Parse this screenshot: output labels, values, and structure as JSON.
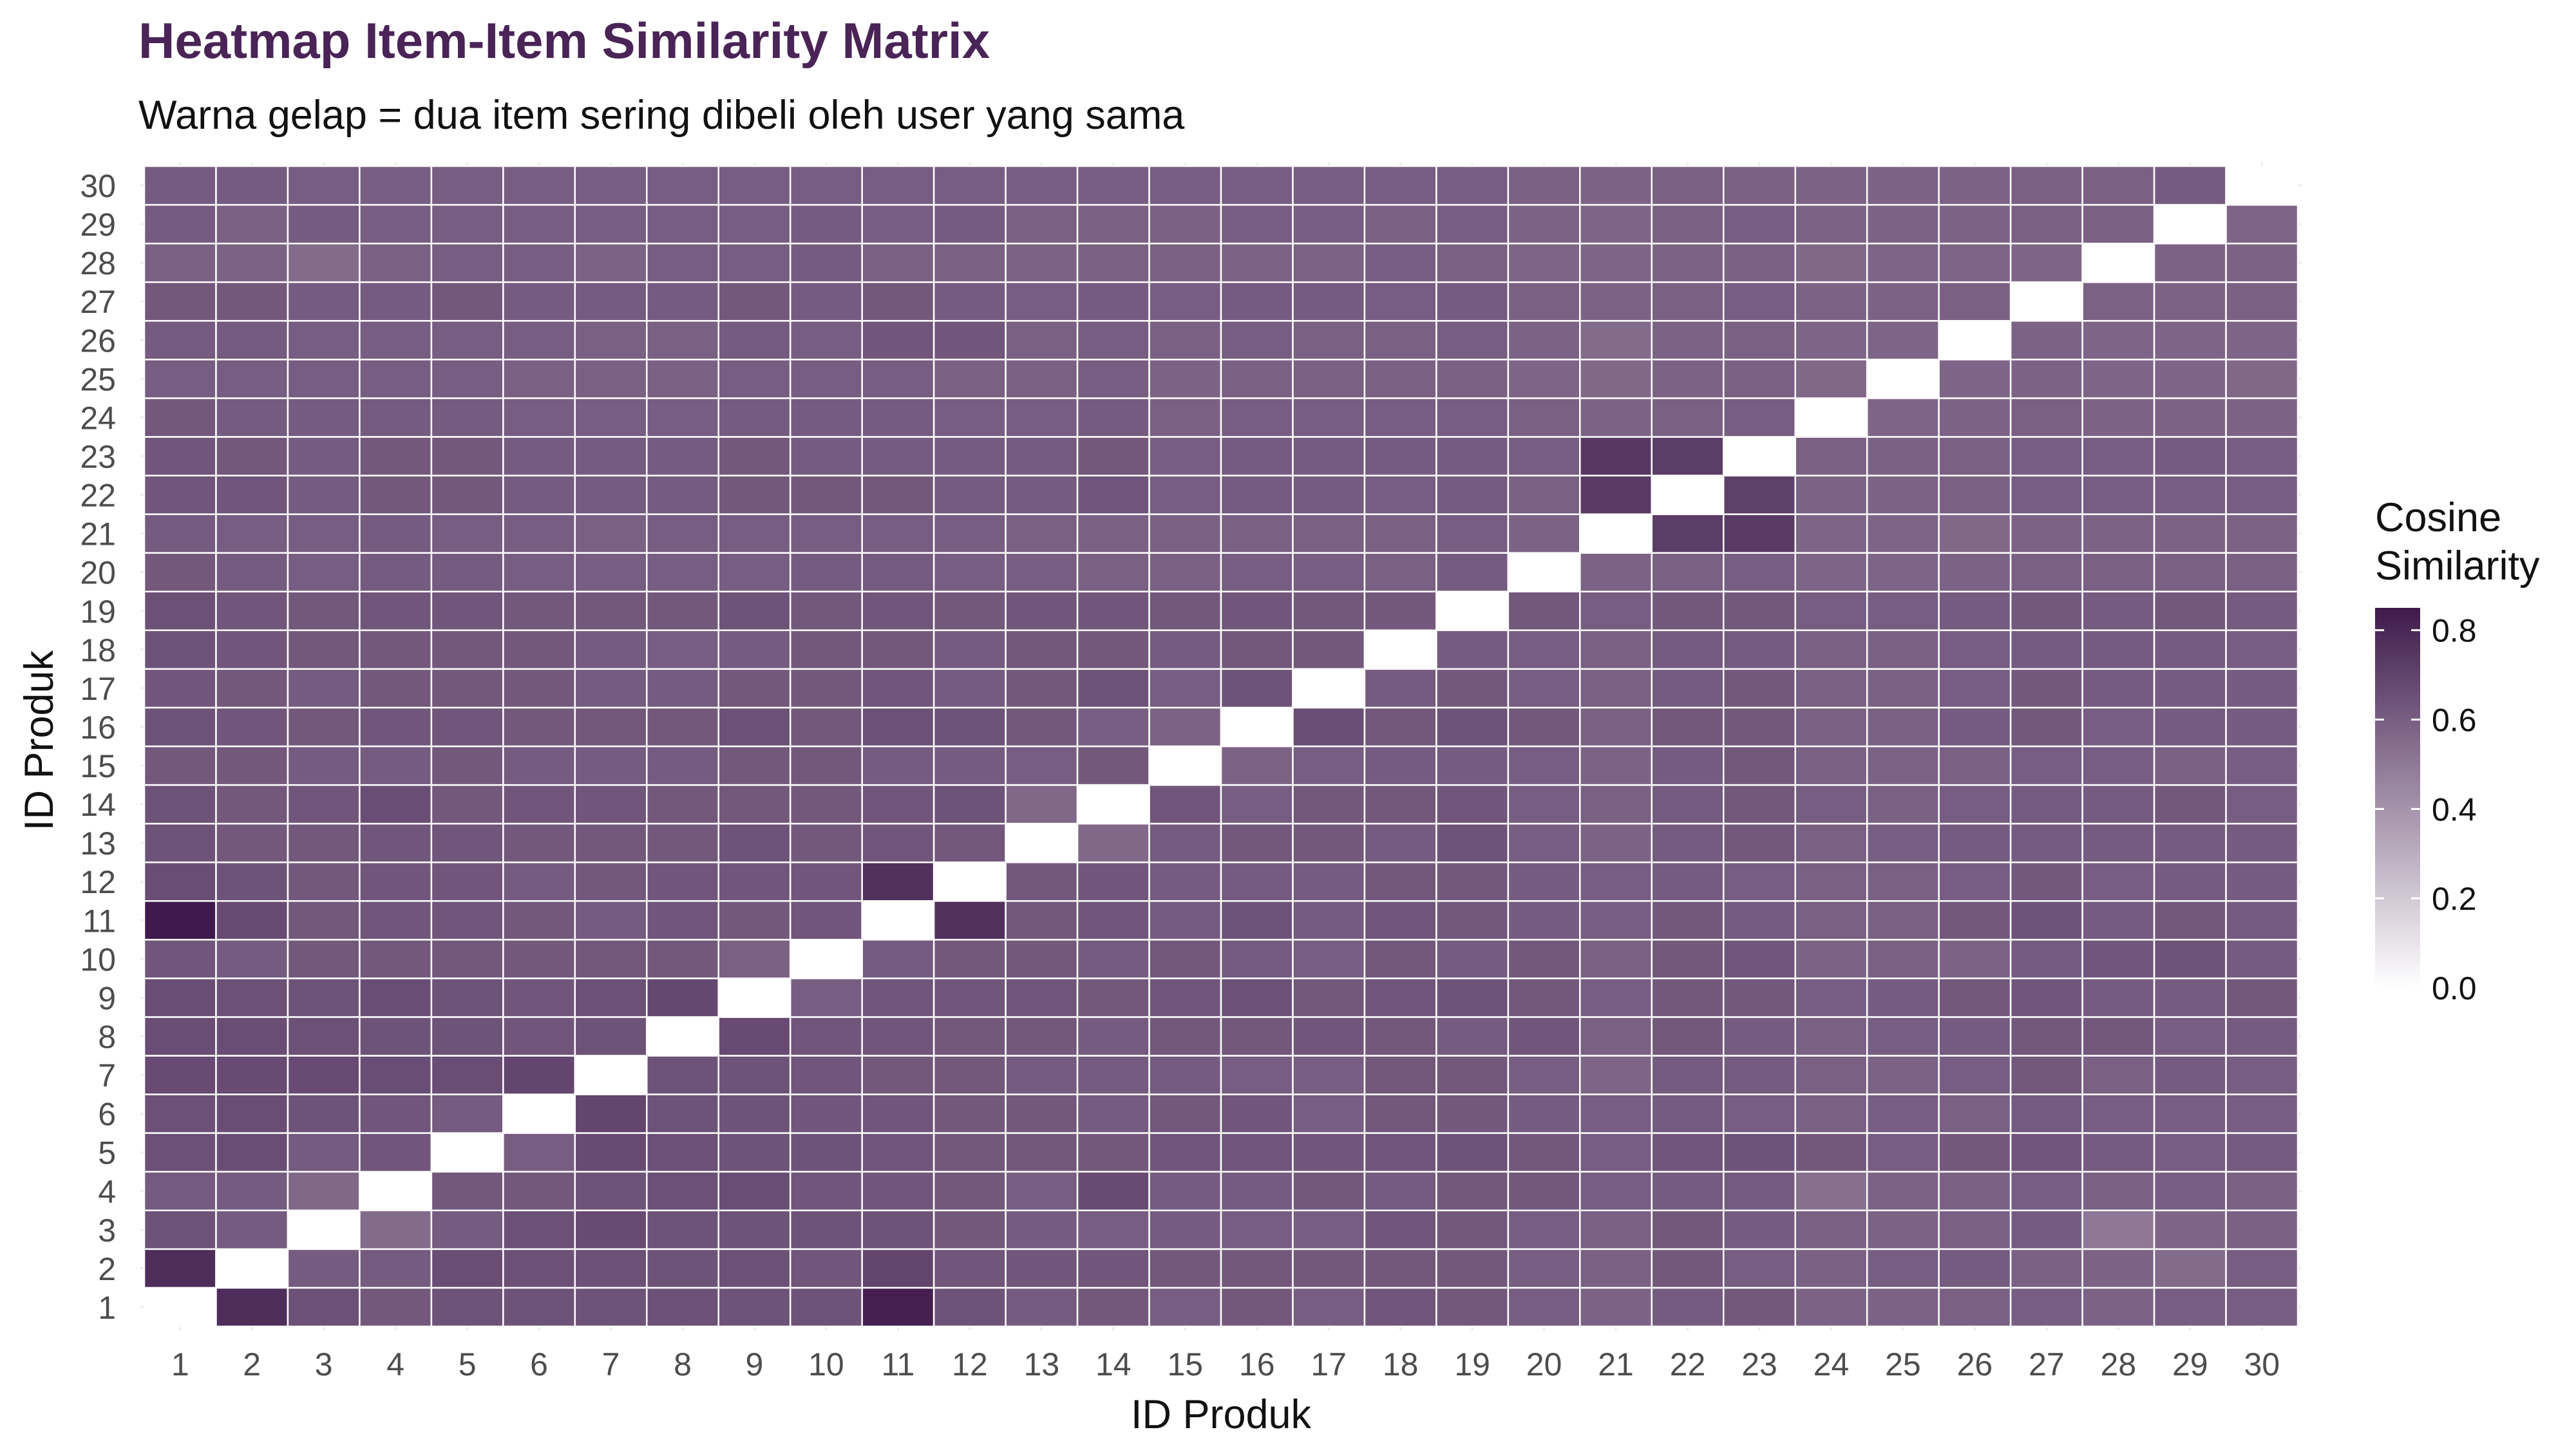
{
  "chart_data": {
    "type": "heatmap",
    "title": "Heatmap Item-Item Similarity Matrix",
    "subtitle": "Warna gelap = dua item sering dibeli oleh user yang sama",
    "xlabel": "ID Produk",
    "ylabel": "ID Produk",
    "x_categories": [
      "1",
      "2",
      "3",
      "4",
      "5",
      "6",
      "7",
      "8",
      "9",
      "10",
      "11",
      "12",
      "13",
      "14",
      "15",
      "16",
      "17",
      "18",
      "19",
      "20",
      "21",
      "22",
      "23",
      "24",
      "25",
      "26",
      "27",
      "28",
      "29",
      "30"
    ],
    "y_categories": [
      "1",
      "2",
      "3",
      "4",
      "5",
      "6",
      "7",
      "8",
      "9",
      "10",
      "11",
      "12",
      "13",
      "14",
      "15",
      "16",
      "17",
      "18",
      "19",
      "20",
      "21",
      "22",
      "23",
      "24",
      "25",
      "26",
      "27",
      "28",
      "29",
      "30"
    ],
    "legend": {
      "title_lines": [
        "Cosine",
        "Similarity"
      ],
      "ticks": [
        "0.0",
        "0.2",
        "0.4",
        "0.6",
        "0.8"
      ],
      "tick_values": [
        0.0,
        0.2,
        0.4,
        0.6,
        0.8
      ],
      "range": [
        0.0,
        0.85
      ],
      "position": "right"
    },
    "color_low": "#ffffff",
    "color_high": "#3f1a4c",
    "diagonal_value": 0.0,
    "matrix": [
      [
        0.0,
        0.78,
        0.65,
        0.62,
        0.64,
        0.64,
        0.64,
        0.65,
        0.64,
        0.64,
        0.83,
        0.64,
        0.61,
        0.62,
        0.6,
        0.62,
        0.6,
        0.63,
        0.62,
        0.6,
        0.58,
        0.61,
        0.62,
        0.58,
        0.58,
        0.59,
        0.6,
        0.58,
        0.6,
        0.6
      ],
      [
        0.78,
        0.0,
        0.61,
        0.61,
        0.66,
        0.65,
        0.65,
        0.64,
        0.65,
        0.63,
        0.69,
        0.63,
        0.63,
        0.63,
        0.62,
        0.62,
        0.62,
        0.62,
        0.62,
        0.6,
        0.59,
        0.62,
        0.6,
        0.59,
        0.6,
        0.61,
        0.59,
        0.58,
        0.55,
        0.6
      ],
      [
        0.64,
        0.61,
        0.0,
        0.55,
        0.61,
        0.65,
        0.67,
        0.64,
        0.64,
        0.64,
        0.64,
        0.62,
        0.61,
        0.6,
        0.61,
        0.6,
        0.6,
        0.63,
        0.62,
        0.6,
        0.59,
        0.62,
        0.61,
        0.59,
        0.58,
        0.59,
        0.61,
        0.5,
        0.57,
        0.59
      ],
      [
        0.61,
        0.61,
        0.56,
        0.0,
        0.62,
        0.62,
        0.64,
        0.65,
        0.66,
        0.63,
        0.63,
        0.62,
        0.6,
        0.67,
        0.61,
        0.61,
        0.62,
        0.61,
        0.62,
        0.62,
        0.6,
        0.61,
        0.61,
        0.53,
        0.58,
        0.59,
        0.6,
        0.59,
        0.6,
        0.59
      ],
      [
        0.65,
        0.66,
        0.61,
        0.63,
        0.0,
        0.6,
        0.67,
        0.65,
        0.64,
        0.64,
        0.63,
        0.62,
        0.62,
        0.62,
        0.63,
        0.63,
        0.63,
        0.63,
        0.64,
        0.62,
        0.6,
        0.63,
        0.64,
        0.62,
        0.6,
        0.62,
        0.63,
        0.61,
        0.6,
        0.61
      ],
      [
        0.65,
        0.66,
        0.64,
        0.63,
        0.61,
        0.0,
        0.69,
        0.64,
        0.64,
        0.63,
        0.63,
        0.62,
        0.62,
        0.61,
        0.62,
        0.63,
        0.6,
        0.62,
        0.62,
        0.61,
        0.6,
        0.61,
        0.6,
        0.59,
        0.6,
        0.59,
        0.61,
        0.6,
        0.6,
        0.6
      ],
      [
        0.67,
        0.67,
        0.67,
        0.66,
        0.66,
        0.69,
        0.0,
        0.64,
        0.64,
        0.63,
        0.62,
        0.62,
        0.61,
        0.61,
        0.61,
        0.6,
        0.6,
        0.62,
        0.62,
        0.6,
        0.57,
        0.61,
        0.61,
        0.59,
        0.58,
        0.6,
        0.62,
        0.59,
        0.61,
        0.6
      ],
      [
        0.66,
        0.66,
        0.65,
        0.64,
        0.64,
        0.63,
        0.64,
        0.0,
        0.67,
        0.63,
        0.63,
        0.62,
        0.62,
        0.61,
        0.62,
        0.62,
        0.63,
        0.62,
        0.61,
        0.63,
        0.59,
        0.62,
        0.61,
        0.59,
        0.6,
        0.61,
        0.62,
        0.62,
        0.6,
        0.61
      ],
      [
        0.66,
        0.65,
        0.64,
        0.66,
        0.64,
        0.63,
        0.65,
        0.68,
        0.0,
        0.6,
        0.63,
        0.63,
        0.63,
        0.62,
        0.63,
        0.65,
        0.62,
        0.63,
        0.64,
        0.62,
        0.6,
        0.62,
        0.62,
        0.6,
        0.61,
        0.62,
        0.63,
        0.61,
        0.61,
        0.62
      ],
      [
        0.63,
        0.61,
        0.62,
        0.62,
        0.62,
        0.62,
        0.62,
        0.62,
        0.59,
        0.0,
        0.61,
        0.62,
        0.62,
        0.61,
        0.62,
        0.61,
        0.6,
        0.62,
        0.61,
        0.62,
        0.59,
        0.62,
        0.63,
        0.58,
        0.59,
        0.58,
        0.61,
        0.63,
        0.64,
        0.61
      ],
      [
        0.85,
        0.67,
        0.62,
        0.63,
        0.63,
        0.62,
        0.61,
        0.63,
        0.62,
        0.63,
        0.0,
        0.77,
        0.62,
        0.63,
        0.61,
        0.64,
        0.61,
        0.63,
        0.62,
        0.61,
        0.6,
        0.62,
        0.61,
        0.59,
        0.59,
        0.62,
        0.64,
        0.61,
        0.62,
        0.61
      ],
      [
        0.66,
        0.64,
        0.62,
        0.63,
        0.63,
        0.61,
        0.62,
        0.63,
        0.63,
        0.63,
        0.77,
        0.0,
        0.62,
        0.63,
        0.61,
        0.61,
        0.61,
        0.62,
        0.62,
        0.61,
        0.6,
        0.61,
        0.6,
        0.59,
        0.59,
        0.6,
        0.62,
        0.6,
        0.61,
        0.61
      ],
      [
        0.64,
        0.62,
        0.62,
        0.63,
        0.63,
        0.62,
        0.62,
        0.62,
        0.64,
        0.62,
        0.63,
        0.62,
        0.0,
        0.56,
        0.61,
        0.62,
        0.62,
        0.61,
        0.64,
        0.6,
        0.58,
        0.61,
        0.62,
        0.59,
        0.6,
        0.61,
        0.61,
        0.61,
        0.61,
        0.61
      ],
      [
        0.64,
        0.62,
        0.63,
        0.66,
        0.62,
        0.63,
        0.63,
        0.62,
        0.62,
        0.62,
        0.63,
        0.64,
        0.56,
        0.0,
        0.63,
        0.6,
        0.62,
        0.62,
        0.63,
        0.6,
        0.59,
        0.61,
        0.62,
        0.6,
        0.59,
        0.6,
        0.61,
        0.61,
        0.62,
        0.6
      ],
      [
        0.62,
        0.62,
        0.61,
        0.61,
        0.62,
        0.61,
        0.61,
        0.61,
        0.62,
        0.62,
        0.61,
        0.61,
        0.6,
        0.62,
        0.0,
        0.58,
        0.6,
        0.61,
        0.61,
        0.6,
        0.58,
        0.61,
        0.62,
        0.59,
        0.58,
        0.59,
        0.6,
        0.6,
        0.59,
        0.6
      ],
      [
        0.64,
        0.63,
        0.62,
        0.63,
        0.63,
        0.62,
        0.62,
        0.62,
        0.65,
        0.62,
        0.65,
        0.64,
        0.62,
        0.6,
        0.58,
        0.0,
        0.66,
        0.62,
        0.64,
        0.62,
        0.59,
        0.62,
        0.62,
        0.59,
        0.59,
        0.61,
        0.62,
        0.6,
        0.61,
        0.61
      ],
      [
        0.63,
        0.62,
        0.61,
        0.62,
        0.62,
        0.62,
        0.61,
        0.61,
        0.62,
        0.62,
        0.63,
        0.61,
        0.62,
        0.64,
        0.6,
        0.64,
        0.0,
        0.61,
        0.62,
        0.6,
        0.59,
        0.61,
        0.62,
        0.59,
        0.59,
        0.6,
        0.62,
        0.61,
        0.61,
        0.61
      ],
      [
        0.64,
        0.63,
        0.62,
        0.62,
        0.62,
        0.62,
        0.61,
        0.6,
        0.61,
        0.62,
        0.62,
        0.61,
        0.62,
        0.62,
        0.61,
        0.62,
        0.62,
        0.0,
        0.61,
        0.6,
        0.59,
        0.61,
        0.61,
        0.59,
        0.59,
        0.6,
        0.61,
        0.61,
        0.61,
        0.6
      ],
      [
        0.65,
        0.63,
        0.62,
        0.63,
        0.63,
        0.62,
        0.62,
        0.62,
        0.64,
        0.62,
        0.63,
        0.62,
        0.63,
        0.63,
        0.62,
        0.63,
        0.62,
        0.62,
        0.0,
        0.62,
        0.6,
        0.62,
        0.62,
        0.6,
        0.6,
        0.61,
        0.62,
        0.61,
        0.62,
        0.61
      ],
      [
        0.62,
        0.61,
        0.6,
        0.61,
        0.61,
        0.6,
        0.6,
        0.6,
        0.6,
        0.61,
        0.61,
        0.6,
        0.6,
        0.59,
        0.59,
        0.6,
        0.6,
        0.59,
        0.61,
        0.0,
        0.58,
        0.59,
        0.6,
        0.57,
        0.57,
        0.58,
        0.59,
        0.59,
        0.59,
        0.59
      ],
      [
        0.61,
        0.6,
        0.6,
        0.61,
        0.6,
        0.6,
        0.59,
        0.6,
        0.6,
        0.6,
        0.6,
        0.6,
        0.59,
        0.59,
        0.59,
        0.59,
        0.59,
        0.59,
        0.6,
        0.58,
        0.0,
        0.72,
        0.73,
        0.57,
        0.57,
        0.56,
        0.58,
        0.58,
        0.58,
        0.58
      ],
      [
        0.63,
        0.63,
        0.61,
        0.62,
        0.62,
        0.61,
        0.61,
        0.61,
        0.62,
        0.62,
        0.62,
        0.61,
        0.61,
        0.63,
        0.6,
        0.61,
        0.61,
        0.6,
        0.61,
        0.59,
        0.73,
        0.0,
        0.71,
        0.58,
        0.58,
        0.59,
        0.6,
        0.6,
        0.6,
        0.6
      ],
      [
        0.63,
        0.62,
        0.61,
        0.62,
        0.62,
        0.61,
        0.61,
        0.61,
        0.62,
        0.61,
        0.61,
        0.61,
        0.61,
        0.62,
        0.6,
        0.61,
        0.61,
        0.61,
        0.61,
        0.6,
        0.74,
        0.72,
        0.0,
        0.59,
        0.59,
        0.59,
        0.6,
        0.6,
        0.61,
        0.6
      ],
      [
        0.62,
        0.61,
        0.61,
        0.61,
        0.61,
        0.6,
        0.6,
        0.6,
        0.61,
        0.61,
        0.61,
        0.6,
        0.6,
        0.61,
        0.59,
        0.6,
        0.6,
        0.6,
        0.6,
        0.59,
        0.58,
        0.59,
        0.6,
        0.0,
        0.57,
        0.58,
        0.59,
        0.58,
        0.58,
        0.58
      ],
      [
        0.6,
        0.6,
        0.6,
        0.6,
        0.6,
        0.59,
        0.59,
        0.59,
        0.6,
        0.6,
        0.6,
        0.59,
        0.59,
        0.6,
        0.58,
        0.59,
        0.59,
        0.59,
        0.59,
        0.57,
        0.56,
        0.58,
        0.59,
        0.56,
        0.0,
        0.57,
        0.58,
        0.57,
        0.57,
        0.56
      ],
      [
        0.61,
        0.61,
        0.6,
        0.6,
        0.6,
        0.6,
        0.59,
        0.59,
        0.61,
        0.6,
        0.63,
        0.63,
        0.59,
        0.6,
        0.59,
        0.6,
        0.59,
        0.59,
        0.6,
        0.58,
        0.55,
        0.58,
        0.59,
        0.57,
        0.57,
        0.0,
        0.58,
        0.57,
        0.57,
        0.57
      ],
      [
        0.62,
        0.62,
        0.61,
        0.61,
        0.62,
        0.61,
        0.61,
        0.61,
        0.62,
        0.61,
        0.62,
        0.61,
        0.6,
        0.61,
        0.6,
        0.61,
        0.61,
        0.6,
        0.61,
        0.59,
        0.58,
        0.59,
        0.6,
        0.58,
        0.58,
        0.59,
        0.0,
        0.58,
        0.58,
        0.59
      ],
      [
        0.59,
        0.58,
        0.55,
        0.59,
        0.6,
        0.6,
        0.58,
        0.6,
        0.6,
        0.61,
        0.59,
        0.59,
        0.58,
        0.59,
        0.59,
        0.58,
        0.58,
        0.6,
        0.59,
        0.57,
        0.57,
        0.58,
        0.59,
        0.56,
        0.57,
        0.57,
        0.57,
        0.0,
        0.58,
        0.58
      ],
      [
        0.61,
        0.59,
        0.61,
        0.6,
        0.6,
        0.6,
        0.6,
        0.6,
        0.6,
        0.61,
        0.6,
        0.61,
        0.59,
        0.59,
        0.59,
        0.6,
        0.6,
        0.59,
        0.6,
        0.58,
        0.57,
        0.59,
        0.6,
        0.58,
        0.58,
        0.58,
        0.59,
        0.59,
        0.0,
        0.57
      ],
      [
        0.61,
        0.61,
        0.6,
        0.6,
        0.6,
        0.6,
        0.6,
        0.6,
        0.6,
        0.6,
        0.6,
        0.6,
        0.6,
        0.6,
        0.6,
        0.6,
        0.6,
        0.6,
        0.6,
        0.59,
        0.58,
        0.59,
        0.59,
        0.58,
        0.58,
        0.58,
        0.59,
        0.59,
        0.61,
        0.0
      ]
    ]
  }
}
